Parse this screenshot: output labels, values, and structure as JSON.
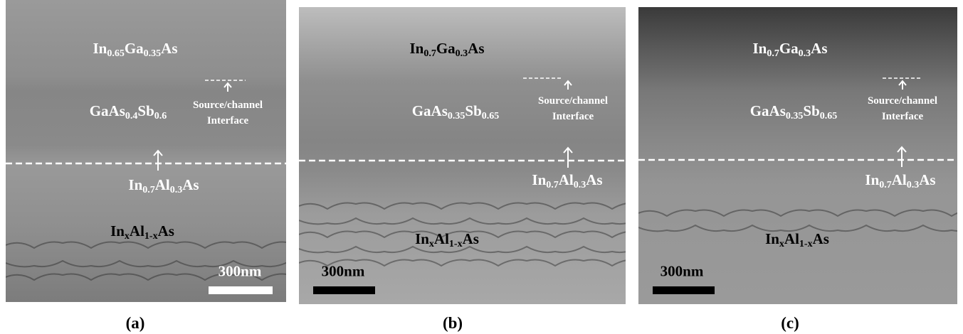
{
  "panels": [
    {
      "caption": "(a)",
      "scale_bar": "300nm",
      "interface_label": [
        "Source/channel",
        "Interface"
      ],
      "layers": [
        {
          "parts": [
            [
              "In",
              "0.65"
            ],
            [
              "Ga",
              "0.35"
            ],
            [
              "As"
            ]
          ]
        },
        {
          "parts": [
            [
              "GaAs",
              "0.4"
            ],
            [
              "Sb",
              "0.6"
            ]
          ]
        },
        {
          "parts": [
            [
              "In",
              "0.7"
            ],
            [
              "Al",
              "0.3"
            ],
            [
              "As"
            ]
          ]
        },
        {
          "parts": [
            [
              "In",
              "x"
            ],
            [
              "Al",
              "1-x"
            ],
            [
              "As"
            ]
          ]
        }
      ]
    },
    {
      "caption": "(b)",
      "scale_bar": "300nm",
      "interface_label": [
        "Source/channel",
        "Interface"
      ],
      "layers": [
        {
          "parts": [
            [
              "In",
              "0.7"
            ],
            [
              "Ga",
              "0.3"
            ],
            [
              "As"
            ]
          ]
        },
        {
          "parts": [
            [
              "GaAs",
              "0.35"
            ],
            [
              "Sb",
              "0.65"
            ]
          ]
        },
        {
          "parts": [
            [
              "In",
              "0.7"
            ],
            [
              "Al",
              "0.3"
            ],
            [
              "As"
            ]
          ]
        },
        {
          "parts": [
            [
              "In",
              "x"
            ],
            [
              "Al",
              "1-x"
            ],
            [
              "As"
            ]
          ]
        }
      ]
    },
    {
      "caption": "(c)",
      "scale_bar": "300nm",
      "interface_label": [
        "Source/channel",
        "Interface"
      ],
      "layers": [
        {
          "parts": [
            [
              "In",
              "0.7"
            ],
            [
              "Ga",
              "0.3"
            ],
            [
              "As"
            ]
          ]
        },
        {
          "parts": [
            [
              "GaAs",
              "0.35"
            ],
            [
              "Sb",
              "0.65"
            ]
          ]
        },
        {
          "parts": [
            [
              "In",
              "0.7"
            ],
            [
              "Al",
              "0.3"
            ],
            [
              "As"
            ]
          ]
        },
        {
          "parts": [
            [
              "In",
              "x"
            ],
            [
              "Al",
              "1-x"
            ],
            [
              "As"
            ]
          ]
        }
      ]
    }
  ]
}
